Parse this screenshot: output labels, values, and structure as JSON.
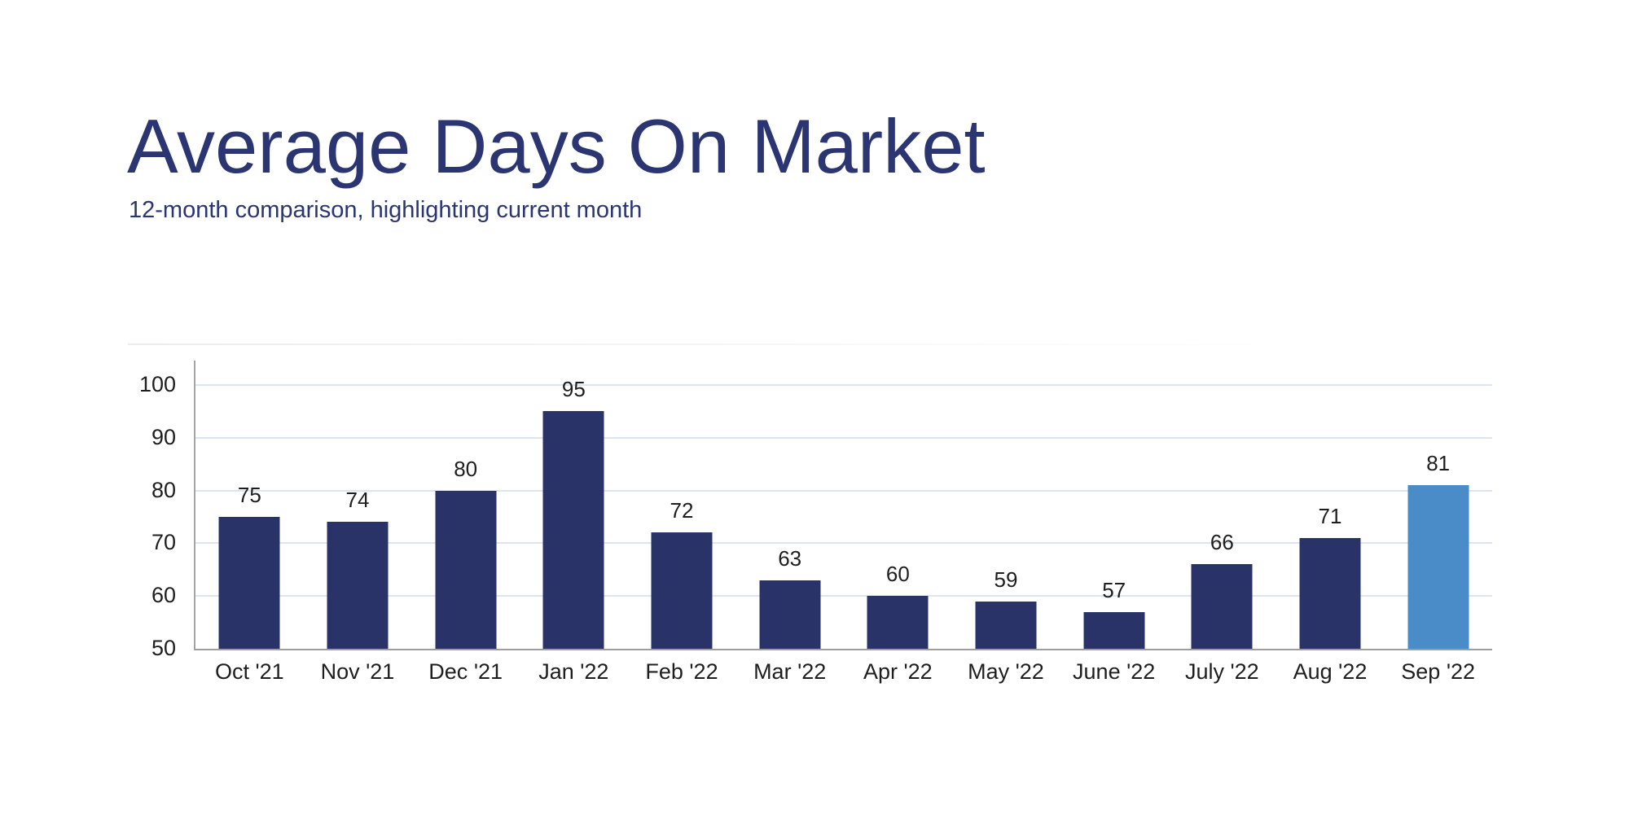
{
  "chart_data": {
    "type": "bar",
    "title": "Average Days On Market",
    "subtitle": "12-month comparison, highlighting current month",
    "categories": [
      "Oct '21",
      "Nov '21",
      "Dec '21",
      "Jan '22",
      "Feb '22",
      "Mar '22",
      "Apr '22",
      "May '22",
      "June '22",
      "July '22",
      "Aug '22",
      "Sep '22"
    ],
    "values": [
      75,
      74,
      80,
      95,
      72,
      63,
      60,
      59,
      57,
      66,
      71,
      81
    ],
    "highlighted_index": 11,
    "highlight_meaning": "current month",
    "yticks": [
      50,
      60,
      70,
      80,
      90,
      100
    ],
    "ylim": [
      50,
      104.6
    ],
    "xlabel": "",
    "ylabel": "",
    "legend": "none",
    "grid": "horizontal",
    "colors": {
      "bar": "#2a3368",
      "highlight_bar": "#4a8cc7",
      "gridline": "#dde5f1",
      "axis": "#a3a3a3",
      "value_label": "#1e1e1e",
      "tick_label": "#1e1e1e",
      "title": "#2b3572",
      "background": "#ffffff"
    }
  }
}
